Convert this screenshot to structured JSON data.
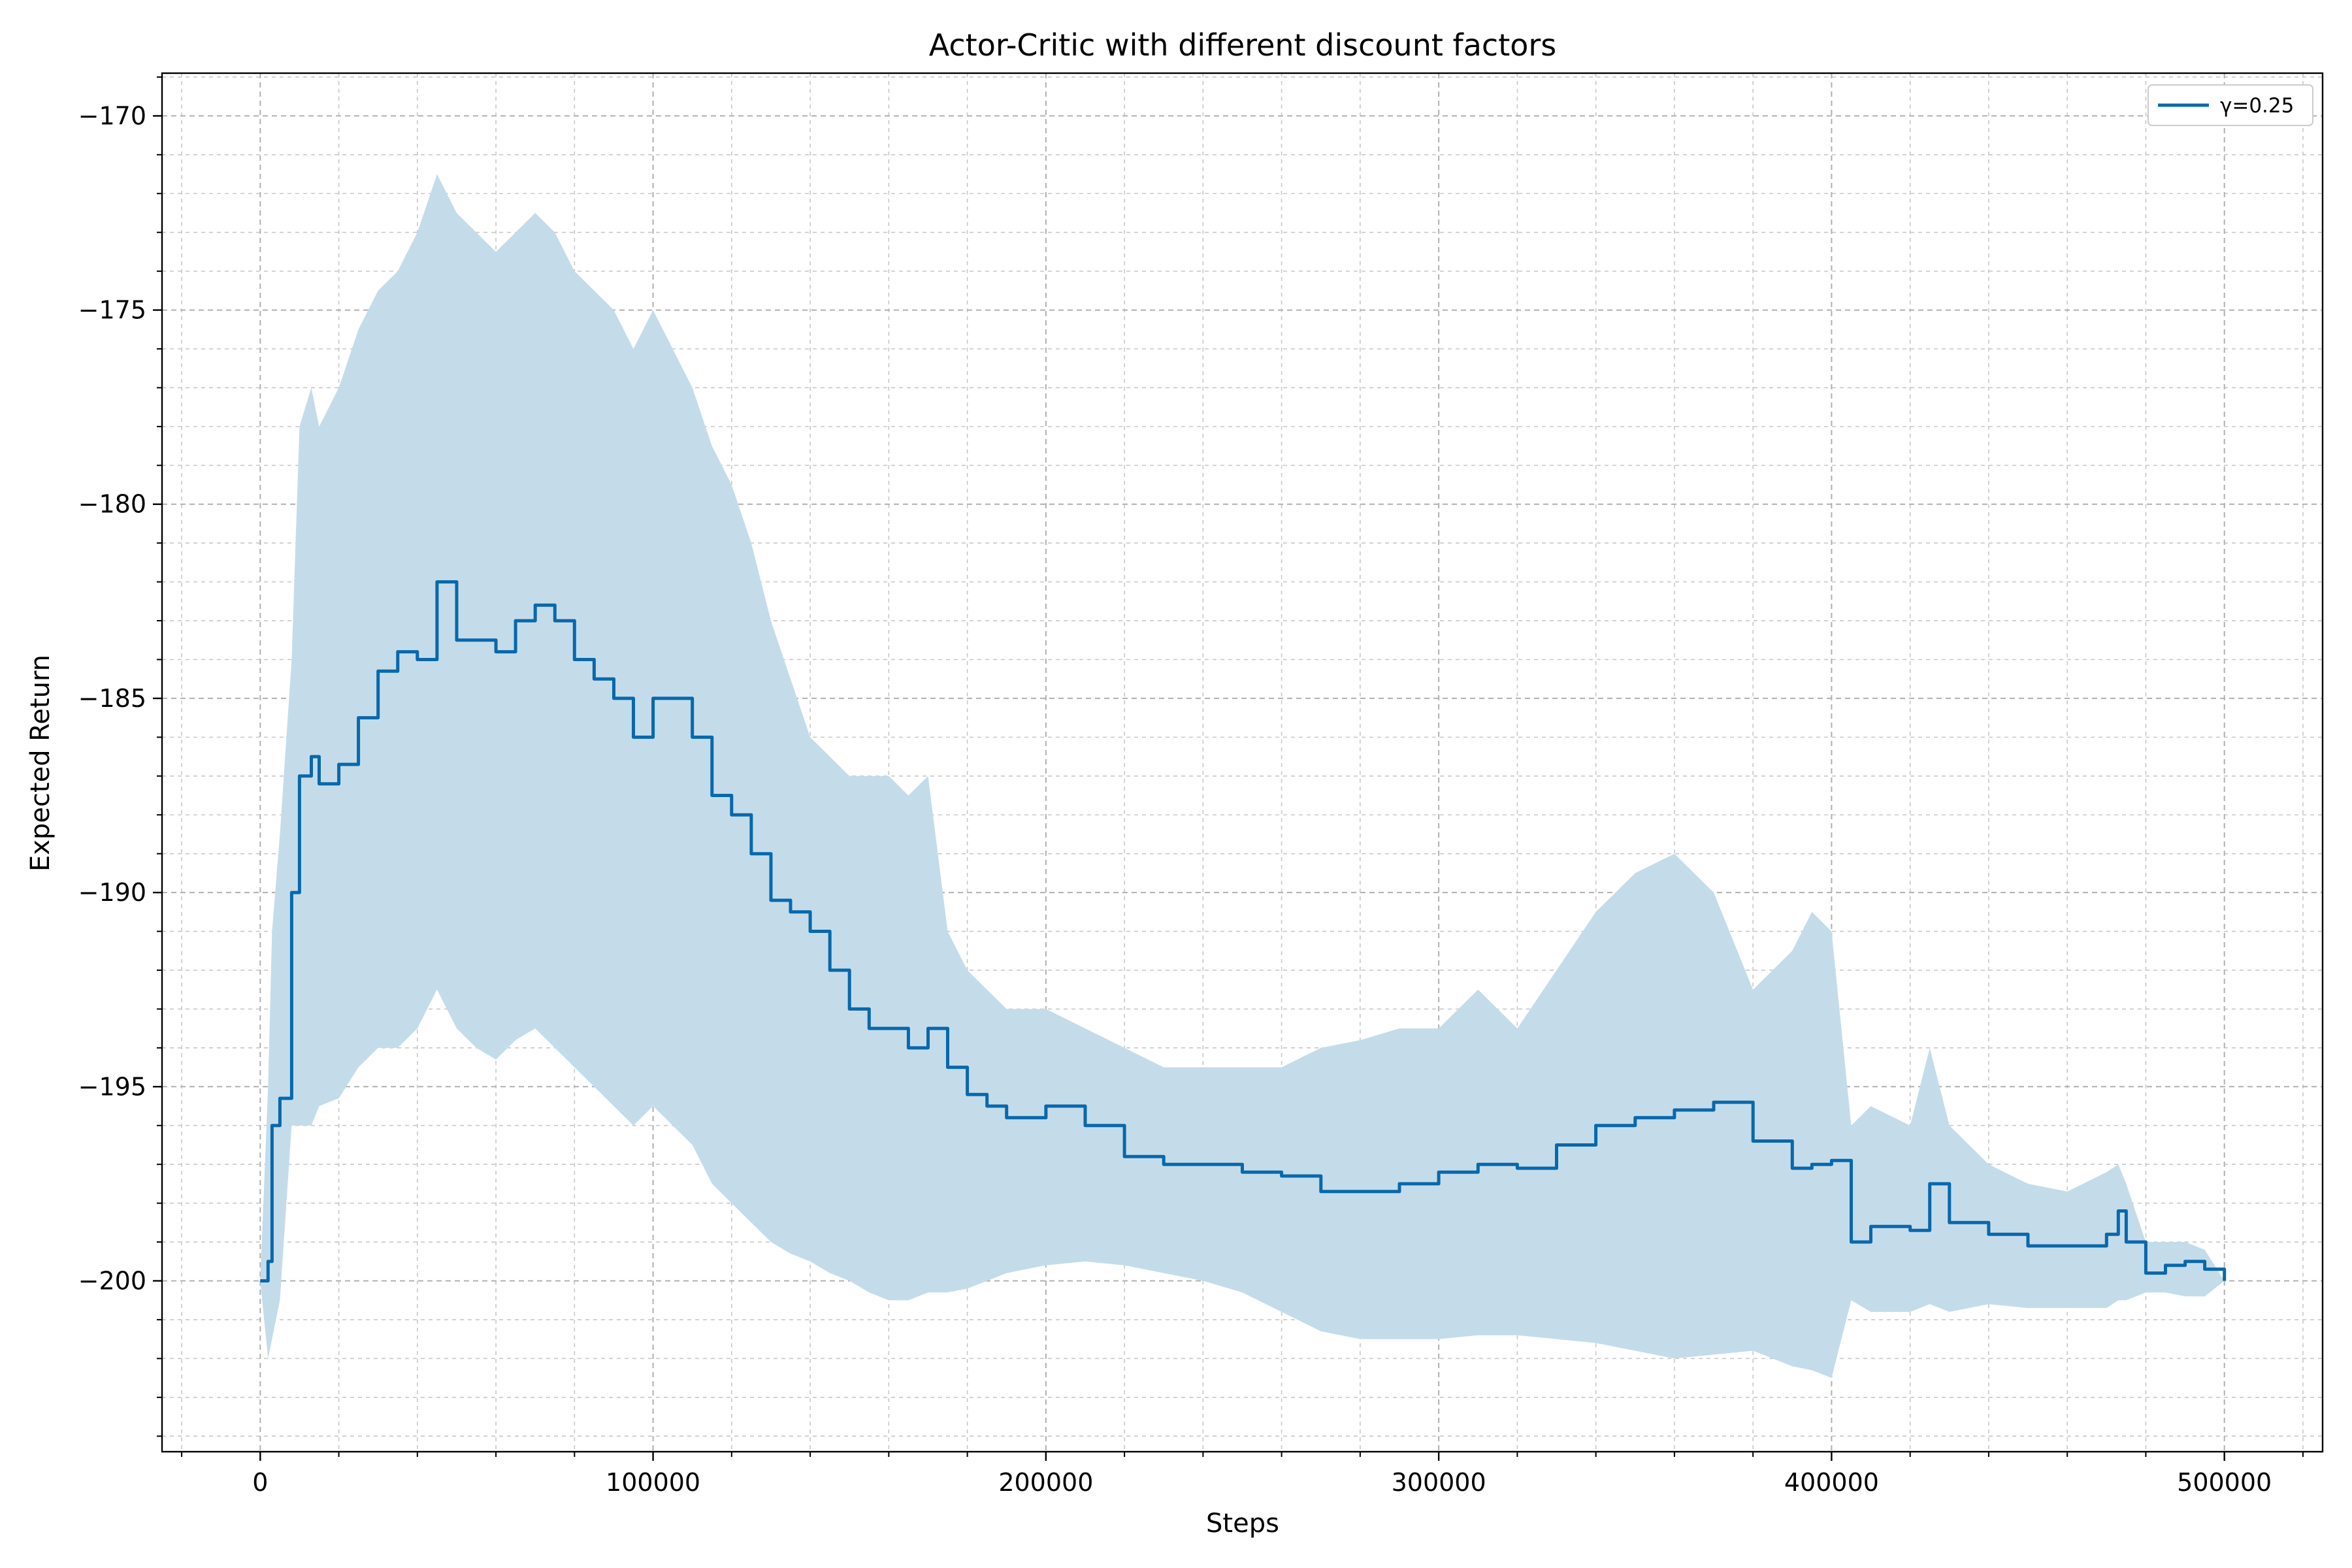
{
  "chart_data": {
    "type": "line",
    "title": "Actor-Critic with different discount factors",
    "xlabel": "Steps",
    "ylabel": "Expected Return",
    "xlim": [
      -25000,
      525000
    ],
    "ylim": [
      -204.4,
      -168.9
    ],
    "xticks": [
      0,
      100000,
      200000,
      300000,
      400000,
      500000
    ],
    "xtick_labels": [
      "0",
      "100000",
      "200000",
      "300000",
      "400000",
      "500000"
    ],
    "yticks": [
      -200,
      -195,
      -190,
      -185,
      -180,
      -175,
      -170
    ],
    "ytick_labels": [
      "−200",
      "−195",
      "−190",
      "−185",
      "−180",
      "−175",
      "−170"
    ],
    "grid": "major and minor, dashed",
    "legend_position": "top-right",
    "colors": {
      "line": "#0868ac",
      "band": "#c4dcea"
    },
    "series": [
      {
        "name": "γ=0.25",
        "x": [
          0,
          2000,
          3000,
          5000,
          8000,
          10000,
          13000,
          15000,
          20000,
          25000,
          30000,
          35000,
          40000,
          45000,
          50000,
          55000,
          60000,
          65000,
          70000,
          75000,
          80000,
          85000,
          90000,
          95000,
          100000,
          105000,
          110000,
          115000,
          120000,
          125000,
          130000,
          135000,
          140000,
          145000,
          150000,
          155000,
          160000,
          165000,
          170000,
          175000,
          180000,
          185000,
          190000,
          195000,
          200000,
          210000,
          220000,
          230000,
          240000,
          250000,
          260000,
          270000,
          280000,
          290000,
          300000,
          310000,
          320000,
          330000,
          340000,
          350000,
          360000,
          370000,
          380000,
          390000,
          395000,
          400000,
          405000,
          410000,
          420000,
          425000,
          430000,
          440000,
          450000,
          460000,
          470000,
          473000,
          475000,
          480000,
          485000,
          490000,
          495000,
          500000
        ],
        "y": [
          -200,
          -199.5,
          -196,
          -195.3,
          -190,
          -187,
          -186.5,
          -187.2,
          -186.7,
          -185.5,
          -184.3,
          -183.8,
          -184,
          -182,
          -183.5,
          -183.5,
          -183.8,
          -183,
          -182.6,
          -183,
          -184,
          -184.5,
          -185,
          -186,
          -185,
          -185,
          -186,
          -187.5,
          -188,
          -189,
          -190.2,
          -190.5,
          -191,
          -192,
          -193,
          -193.5,
          -193.5,
          -194,
          -193.5,
          -194.5,
          -195.2,
          -195.5,
          -195.8,
          -195.8,
          -195.5,
          -196,
          -196.8,
          -197,
          -197,
          -197.2,
          -197.3,
          -197.7,
          -197.7,
          -197.5,
          -197.2,
          -197,
          -197.1,
          -196.5,
          -196,
          -195.8,
          -195.6,
          -195.4,
          -196.4,
          -197.1,
          -197,
          -196.9,
          -199,
          -198.6,
          -198.7,
          -197.5,
          -198.5,
          -198.8,
          -199.1,
          -199.1,
          -198.8,
          -198.2,
          -199,
          -199.8,
          -199.6,
          -199.5,
          -199.7,
          -200
        ],
        "upper": [
          -200,
          -195,
          -191,
          -188.5,
          -184,
          -178,
          -177,
          -178,
          -177,
          -175.5,
          -174.5,
          -174,
          -173,
          -171.5,
          -172.5,
          -173,
          -173.5,
          -173,
          -172.5,
          -173,
          -174,
          -174.5,
          -175,
          -176,
          -175,
          -176,
          -177,
          -178.5,
          -179.5,
          -181,
          -183,
          -184.5,
          -186,
          -186.5,
          -187,
          -187,
          -187,
          -187.5,
          -187,
          -191,
          -192,
          -192.5,
          -193,
          -193,
          -193,
          -193.5,
          -194,
          -194.5,
          -194.5,
          -194.5,
          -194.5,
          -194,
          -193.8,
          -193.5,
          -193.5,
          -192.5,
          -193.5,
          -192,
          -190.5,
          -189.5,
          -189,
          -190,
          -192.5,
          -191.5,
          -190.5,
          -191,
          -196,
          -195.5,
          -196,
          -194,
          -196,
          -197,
          -197.5,
          -197.7,
          -197.2,
          -197,
          -197.5,
          -199,
          -199,
          -199,
          -199.2,
          -200
        ],
        "lower": [
          -200,
          -202,
          -201.5,
          -200.5,
          -196,
          -196,
          -196,
          -195.5,
          -195.3,
          -194.5,
          -194,
          -194,
          -193.5,
          -192.5,
          -193.5,
          -194,
          -194.3,
          -193.8,
          -193.5,
          -194,
          -194.5,
          -195,
          -195.5,
          -196,
          -195.5,
          -196,
          -196.5,
          -197.5,
          -198,
          -198.5,
          -199,
          -199.3,
          -199.5,
          -199.8,
          -200,
          -200.3,
          -200.5,
          -200.5,
          -200.3,
          -200.3,
          -200.2,
          -200,
          -199.8,
          -199.7,
          -199.6,
          -199.5,
          -199.6,
          -199.8,
          -200,
          -200.3,
          -200.8,
          -201.3,
          -201.5,
          -201.5,
          -201.5,
          -201.4,
          -201.4,
          -201.5,
          -201.6,
          -201.8,
          -202,
          -201.9,
          -201.8,
          -202.2,
          -202.3,
          -202.5,
          -200.5,
          -200.8,
          -200.8,
          -200.6,
          -200.8,
          -200.6,
          -200.7,
          -200.7,
          -200.7,
          -200.5,
          -200.5,
          -200.3,
          -200.3,
          -200.4,
          -200.4,
          -200
        ]
      }
    ]
  }
}
